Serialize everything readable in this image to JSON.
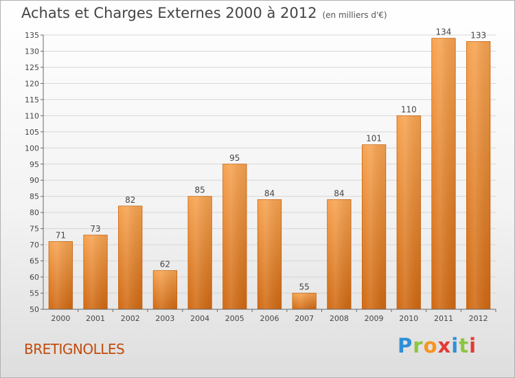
{
  "header": {
    "title": "Achats et Charges Externes 2000 à 2012",
    "unit": "(en milliers d'€)"
  },
  "footer": {
    "place": "BRETIGNOLLES",
    "logo_letters": [
      "P",
      "r",
      "o",
      "x",
      "i",
      "t",
      "i"
    ],
    "logo_colors": [
      "#2f8fd6",
      "#8cc63f",
      "#f7941d",
      "#e53935",
      "#2f8fd6",
      "#8cc63f",
      "#e53935"
    ]
  },
  "colors": {
    "bar_top": "#f7a350",
    "bar_bottom": "#d06912",
    "bar_edge": "#c8640f",
    "grid": "#d6d6d6",
    "axis": "#666666"
  },
  "chart_data": {
    "type": "bar",
    "title": "Achats et Charges Externes 2000 à 2012",
    "subtitle": "(en milliers d'€)",
    "categories": [
      "2000",
      "2001",
      "2002",
      "2003",
      "2004",
      "2005",
      "2006",
      "2007",
      "2008",
      "2009",
      "2010",
      "2011",
      "2012"
    ],
    "values": [
      71,
      73,
      82,
      62,
      85,
      95,
      84,
      55,
      84,
      101,
      110,
      134,
      133
    ],
    "ylim": [
      50,
      135
    ],
    "yticks": [
      50,
      55,
      60,
      65,
      70,
      75,
      80,
      85,
      90,
      95,
      100,
      105,
      110,
      115,
      120,
      125,
      130,
      135
    ],
    "grid": true,
    "xlabel": "",
    "ylabel": ""
  }
}
